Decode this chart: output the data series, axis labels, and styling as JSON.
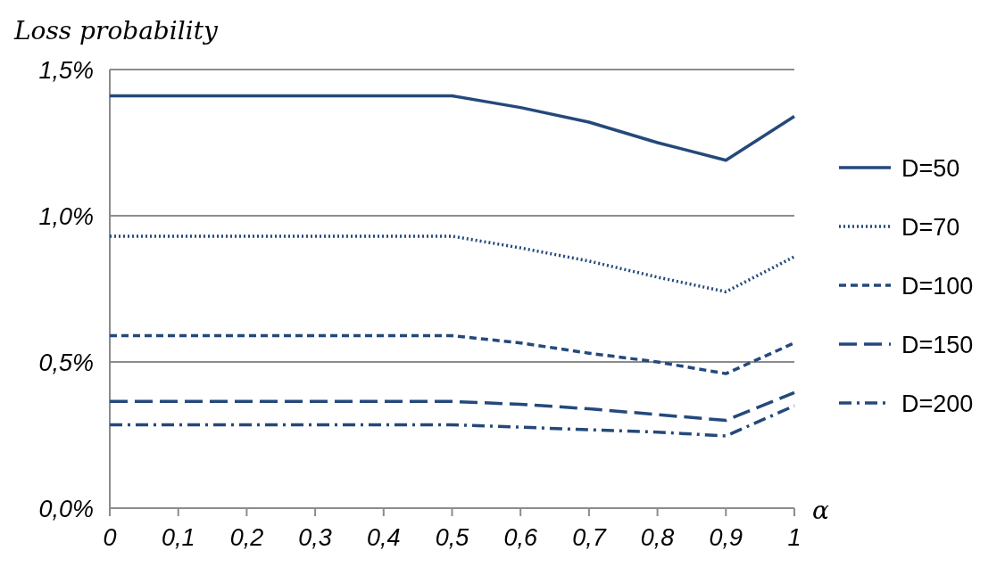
{
  "chart_data": {
    "type": "line",
    "ylabel": "Loss probability",
    "xlabel": "α",
    "x": [
      0,
      0.1,
      0.2,
      0.3,
      0.4,
      0.5,
      0.6,
      0.7,
      0.8,
      0.9,
      1
    ],
    "xlim": [
      0,
      1
    ],
    "xticks": [
      0,
      {
        "value": 0.1,
        "label": "0,1"
      },
      {
        "value": 0.2,
        "label": "0,2"
      },
      {
        "value": 0.3,
        "label": "0,3"
      },
      {
        "value": 0.4,
        "label": "0,4"
      },
      {
        "value": 0.5,
        "label": "0,5"
      },
      {
        "value": 0.6,
        "label": "0,6"
      },
      {
        "value": 0.7,
        "label": "0,7"
      },
      {
        "value": 0.8,
        "label": "0,8"
      },
      {
        "value": 0.9,
        "label": "0,9"
      },
      1
    ],
    "ylim": [
      0,
      1.5
    ],
    "yticks": [
      {
        "value": 0,
        "label": "0,0%"
      },
      {
        "value": 0.5,
        "label": "0,5%"
      },
      {
        "value": 1,
        "label": "1,0%"
      },
      {
        "value": 1.5,
        "label": "1,5%"
      }
    ],
    "grid": "y",
    "legend": "right",
    "marker": "none",
    "series": [
      {
        "name": "D=50",
        "color": "#24497b",
        "line_style": "solid",
        "values": [
          1.41,
          1.41,
          1.41,
          1.41,
          1.41,
          1.41,
          1.37,
          1.32,
          1.25,
          1.19,
          1.34
        ]
      },
      {
        "name": "D=70",
        "color": "#24497b",
        "line_style": "dotted",
        "values": [
          0.93,
          0.93,
          0.93,
          0.93,
          0.93,
          0.93,
          0.89,
          0.845,
          0.79,
          0.74,
          0.86
        ]
      },
      {
        "name": "D=100",
        "color": "#24497b",
        "line_style": "dashed",
        "values": [
          0.59,
          0.59,
          0.59,
          0.59,
          0.59,
          0.59,
          0.565,
          0.53,
          0.5,
          0.46,
          0.565
        ]
      },
      {
        "name": "D=150",
        "color": "#24497b",
        "line_style": "longdash",
        "values": [
          0.365,
          0.365,
          0.365,
          0.365,
          0.365,
          0.365,
          0.355,
          0.34,
          0.32,
          0.3,
          0.395
        ]
      },
      {
        "name": "D=200",
        "color": "#24497b",
        "line_style": "dashdot",
        "values": [
          0.285,
          0.285,
          0.285,
          0.285,
          0.285,
          0.285,
          0.277,
          0.268,
          0.26,
          0.247,
          0.35
        ]
      }
    ]
  }
}
